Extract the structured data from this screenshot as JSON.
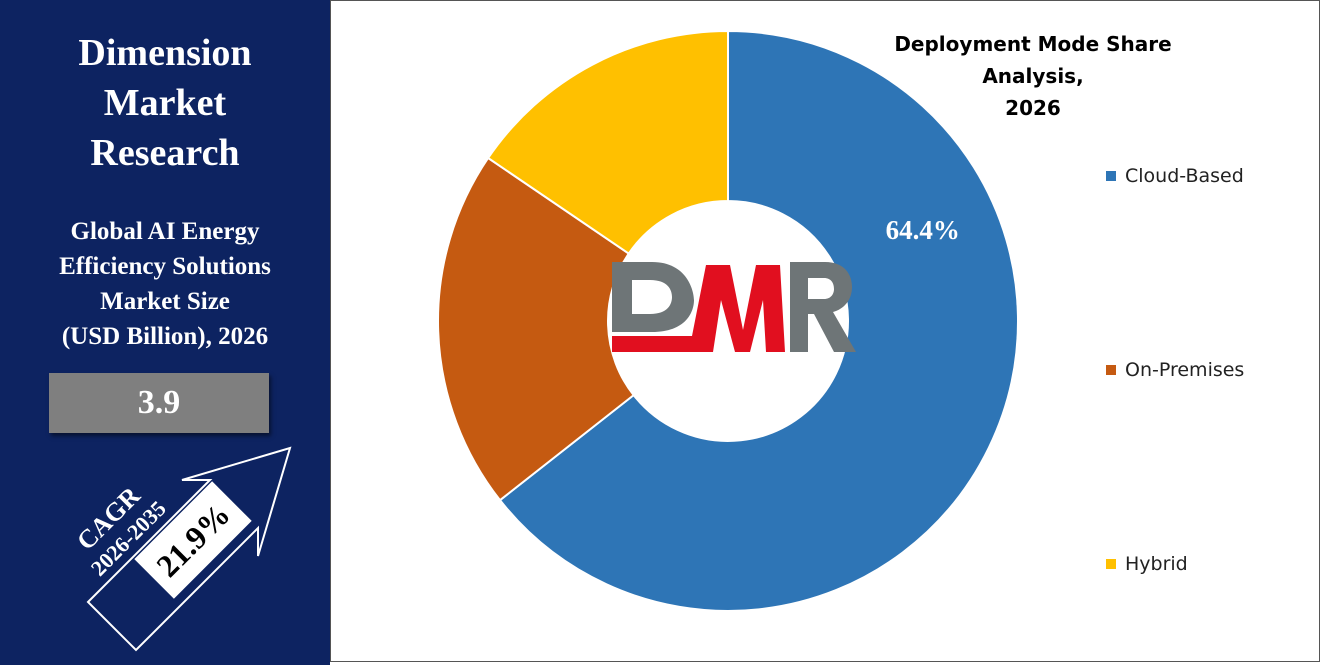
{
  "sidebar": {
    "brand_lines": [
      "Dimension",
      "Market",
      "Research"
    ],
    "subtitle_lines": [
      "Global AI Energy",
      "Efficiency Solutions",
      "Market Size",
      "(USD Billion), 2026"
    ],
    "market_value": "3.9",
    "cagr_label": "CAGR",
    "cagr_period": "2026-2035",
    "cagr_value": "21.9%"
  },
  "logo": {
    "text": "DMR",
    "letters": [
      "D",
      "M",
      "R"
    ]
  },
  "chart_data": {
    "type": "pie",
    "title": "Deployment Mode Share Analysis, 2026",
    "title_lines": [
      "Deployment Mode Share Analysis,",
      "2026"
    ],
    "categories": [
      "Cloud-Based",
      "On-Premises",
      "Hybrid"
    ],
    "values": [
      64.4,
      20.1,
      15.5
    ],
    "colors": [
      "#2e75b6",
      "#c55a11",
      "#ffc000"
    ],
    "data_labels": [
      "64.4%",
      "",
      ""
    ],
    "donut": true,
    "legend_position": "right"
  },
  "colors": {
    "sidebar_bg": "#0d2361",
    "value_box": "#7f7f7f",
    "logo_gray": "#6e7577",
    "logo_red": "#e10f1f"
  }
}
